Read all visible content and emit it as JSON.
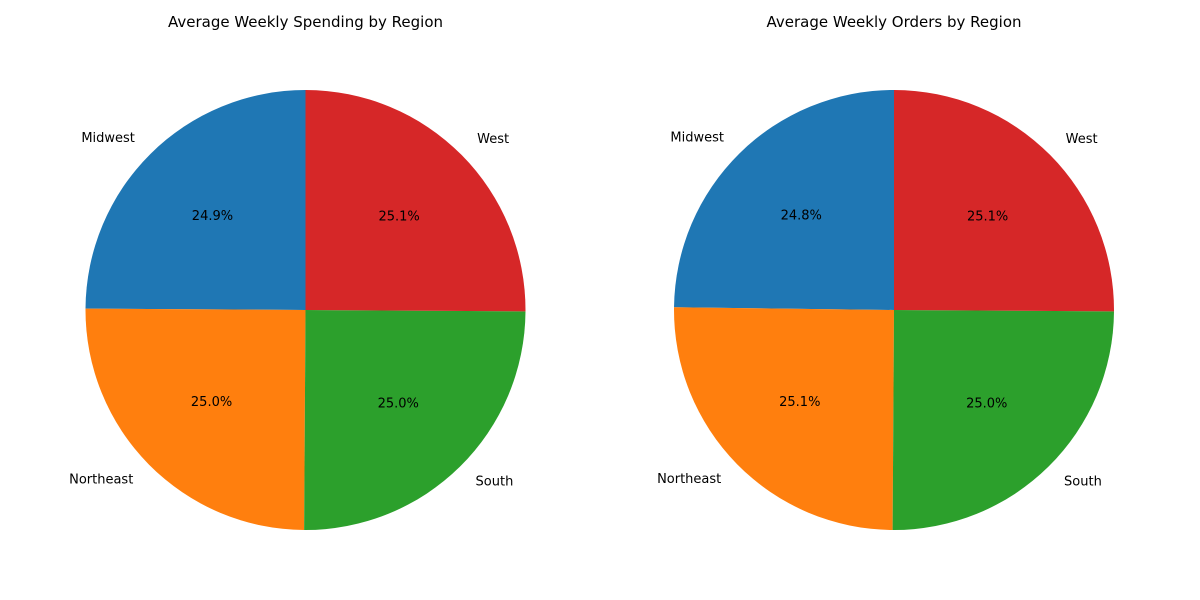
{
  "chart_data": [
    {
      "type": "pie",
      "title": "Average Weekly Spending by Region",
      "categories": [
        "Midwest",
        "Northeast",
        "South",
        "West"
      ],
      "values": [
        24.9,
        25.0,
        25.0,
        25.1
      ],
      "value_labels": [
        "24.9%",
        "25.0%",
        "25.0%",
        "25.1%"
      ],
      "colors": [
        "#1f77b4",
        "#ff7f0e",
        "#2ca02c",
        "#d62728"
      ]
    },
    {
      "type": "pie",
      "title": "Average Weekly Orders by Region",
      "categories": [
        "Midwest",
        "Northeast",
        "South",
        "West"
      ],
      "values": [
        24.8,
        25.1,
        25.0,
        25.1
      ],
      "value_labels": [
        "24.8%",
        "25.1%",
        "25.0%",
        "25.1%"
      ],
      "colors": [
        "#1f77b4",
        "#ff7f0e",
        "#2ca02c",
        "#d62728"
      ]
    }
  ]
}
